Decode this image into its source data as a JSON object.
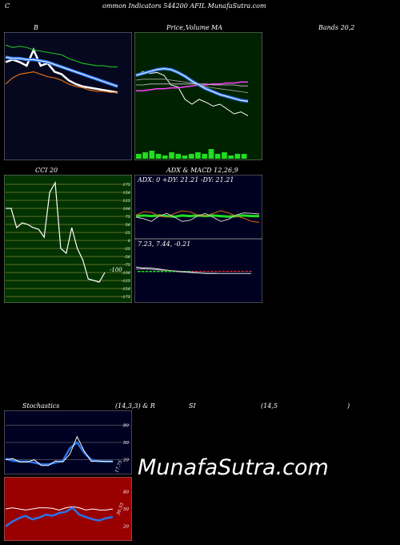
{
  "header": {
    "c": "C",
    "title": "ommon  Indicators 544200  AFIL  MunafaSutra.com"
  },
  "labels": {
    "b": "B",
    "price": "Price,",
    "volume": "Volume",
    "ma": "MA",
    "bands": "Bands 20,2",
    "cci": "CCI 20",
    "adx_macd": "ADX  & MACD 12,26,9",
    "adx_values": "ADX: 0   +DY: 21.21 -DY: 21.21",
    "macd_values": "7.23,  7.44,  -0.21",
    "stoch_left": "Stochastics",
    "stoch_mid": "(14,3,3) & R",
    "stoch_si": "SI",
    "stoch_r": "(14,5",
    "stoch_close": ")",
    "stoch_val": "17.75",
    "rsi_val": "36.53",
    "cci_last": "-100"
  },
  "watermark": "MunafaSutra.com",
  "colors": {
    "bands_bg": "#05081f",
    "price_bg": "#002200",
    "cci_bg": "#003300",
    "adx_bg": "#000020",
    "stoch_bg": "#000022",
    "rsi_bg": "#990000",
    "accent_blue": "#2a74e8",
    "green": "#2bd020",
    "orange": "#e07010"
  },
  "chart_data": [
    {
      "type": "line",
      "panel": "bollinger-bands",
      "series": [
        {
          "values": [
            78,
            80,
            78,
            75,
            88,
            75,
            77,
            70,
            68,
            63,
            60,
            58,
            57,
            56,
            55,
            54,
            53
          ]
        },
        {
          "values": [
            82,
            81,
            81,
            80,
            80,
            79,
            78,
            76,
            74,
            72,
            70,
            68,
            66,
            64,
            62,
            60,
            58
          ]
        },
        {
          "values": [
            92,
            90,
            91,
            90,
            88,
            87,
            86,
            85,
            84,
            81,
            79,
            77,
            76,
            75,
            75,
            74,
            74
          ]
        },
        {
          "values": [
            60,
            65,
            68,
            69,
            70,
            68,
            66,
            65,
            63,
            60,
            58,
            57,
            55,
            54,
            54,
            53,
            53
          ]
        }
      ]
    },
    {
      "type": "line",
      "panel": "price-volume-ma",
      "series": [
        {
          "values": [
            80,
            84,
            82,
            83,
            80,
            70,
            68,
            55,
            50,
            55,
            52,
            48,
            50,
            45,
            40,
            42,
            38
          ]
        },
        {
          "values": [
            64,
            64,
            65,
            66,
            66,
            67,
            67,
            68,
            69,
            70,
            70,
            71,
            71,
            72,
            72,
            73,
            73
          ]
        },
        {
          "values": [
            80,
            82,
            84,
            86,
            87,
            86,
            83,
            79,
            74,
            70,
            66,
            63,
            60,
            58,
            56,
            54,
            53
          ]
        },
        {
          "values": [
            75,
            76,
            76,
            76,
            76,
            75,
            74,
            73,
            72,
            70,
            68,
            67,
            66,
            65,
            64,
            63,
            62
          ]
        },
        {
          "values": [
            70,
            70,
            71,
            71,
            71,
            71,
            71,
            71,
            71,
            71,
            71,
            70,
            70,
            70,
            70,
            69,
            69
          ]
        }
      ],
      "volume": [
        3,
        4,
        5,
        3,
        2,
        4,
        3,
        2,
        3,
        4,
        3,
        6,
        3,
        4,
        2,
        3,
        3
      ]
    },
    {
      "type": "line",
      "panel": "cci",
      "yticks": [
        175,
        150,
        125,
        100,
        75,
        50,
        25,
        0,
        -25,
        -50,
        -75,
        -100,
        -125,
        -150,
        -175
      ],
      "ylim": [
        -175,
        175
      ],
      "series": [
        {
          "values": [
            100,
            100,
            40,
            55,
            50,
            40,
            35,
            10,
            150,
            180,
            -25,
            -40,
            40,
            -25,
            -60,
            -120,
            -125,
            -130,
            -100
          ]
        }
      ]
    },
    {
      "type": "line",
      "panel": "adx",
      "series": [
        {
          "values": [
            40,
            41,
            40,
            41,
            40,
            39,
            41,
            40,
            41,
            40,
            41,
            40,
            39,
            40,
            41,
            40,
            40
          ]
        },
        {
          "values": [
            42,
            48,
            47,
            40,
            38,
            45,
            50,
            48,
            42,
            40,
            45,
            50,
            46,
            40,
            36,
            30,
            28
          ]
        },
        {
          "values": [
            38,
            35,
            30,
            40,
            45,
            38,
            30,
            32,
            40,
            45,
            38,
            30,
            34,
            42,
            46,
            45,
            44
          ]
        }
      ]
    },
    {
      "type": "line",
      "panel": "macd",
      "series": [
        {
          "values": [
            60,
            58,
            58,
            56,
            54,
            52,
            50,
            49,
            48,
            47,
            46,
            46,
            46,
            46,
            46,
            46,
            46
          ]
        },
        {
          "values": [
            56,
            56,
            55,
            54,
            53,
            52,
            51,
            50,
            49,
            48,
            47,
            47,
            46,
            46,
            46,
            46,
            46
          ]
        }
      ]
    },
    {
      "type": "line",
      "panel": "stochastics",
      "yticks": [
        80,
        50,
        20
      ],
      "ylim": [
        0,
        100
      ],
      "series": [
        {
          "values": [
            20,
            22,
            16,
            16,
            20,
            10,
            10,
            18,
            16,
            30,
            60,
            35,
            17,
            18,
            17,
            17
          ]
        },
        {
          "values": [
            22,
            18,
            17,
            17,
            15,
            12,
            12,
            15,
            18,
            40,
            50,
            32,
            20,
            17,
            17,
            17
          ]
        }
      ]
    },
    {
      "type": "line",
      "panel": "rsi",
      "yticks": [
        80,
        50,
        20
      ],
      "ylim": [
        0,
        100
      ],
      "series": [
        {
          "values": [
            50,
            52,
            50,
            48,
            50,
            52,
            52,
            51,
            48,
            52,
            54,
            52,
            48,
            50,
            48,
            48,
            50
          ]
        },
        {
          "values": [
            20,
            28,
            34,
            38,
            32,
            35,
            40,
            38,
            43,
            45,
            52,
            40,
            36,
            32,
            30,
            34,
            36
          ]
        }
      ]
    }
  ]
}
